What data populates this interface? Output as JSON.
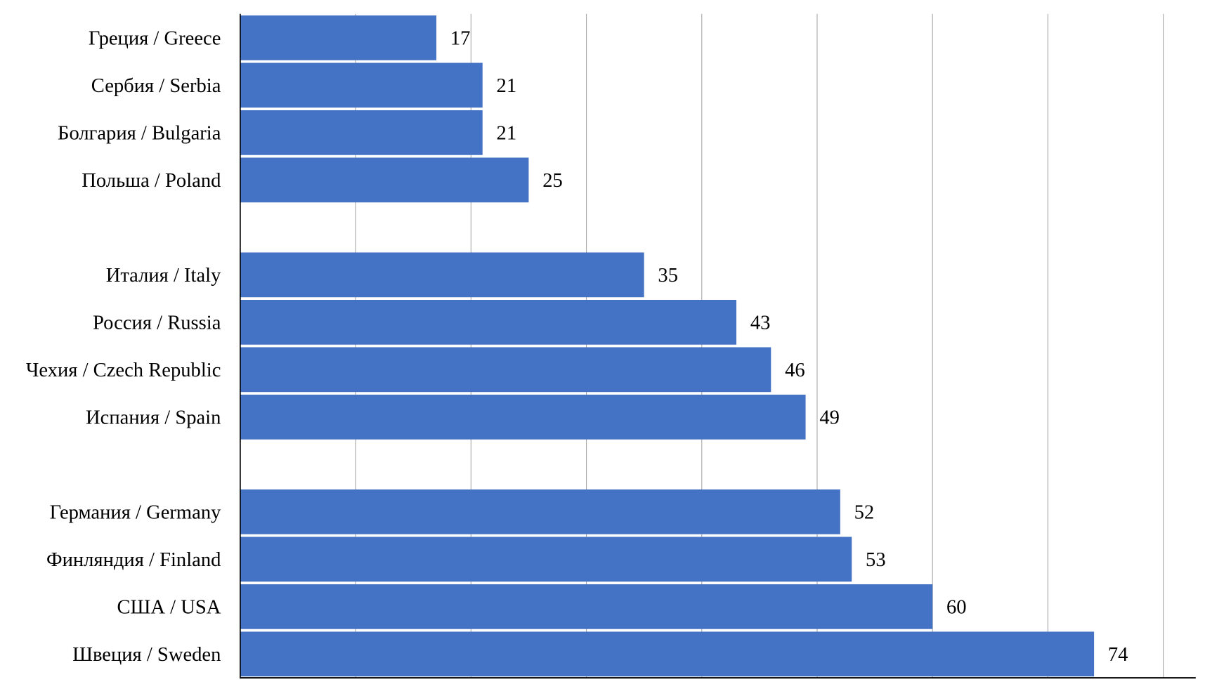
{
  "chart_data": {
    "type": "bar",
    "orientation": "horizontal",
    "title": "",
    "xlabel": "",
    "ylabel": "",
    "xlim": [
      0,
      80
    ],
    "grid": true,
    "grid_step": 10,
    "bar_color": "#4472C4",
    "groups": [
      [
        {
          "label": "Греция / Greece",
          "value": 17
        },
        {
          "label": "Сербия / Serbia",
          "value": 21
        },
        {
          "label": "Болгария / Bulgaria",
          "value": 21
        },
        {
          "label": "Польша / Poland",
          "value": 25
        }
      ],
      [
        {
          "label": "Италия / Italy",
          "value": 35
        },
        {
          "label": "Россия / Russia",
          "value": 43
        },
        {
          "label": "Чехия / Czech Republic",
          "value": 46
        },
        {
          "label": "Испания / Spain",
          "value": 49
        }
      ],
      [
        {
          "label": "Германия / Germany",
          "value": 52
        },
        {
          "label": "Финляндия / Finland",
          "value": 53
        },
        {
          "label": "США / USA",
          "value": 60
        },
        {
          "label": "Швеция / Sweden",
          "value": 74
        }
      ]
    ]
  }
}
